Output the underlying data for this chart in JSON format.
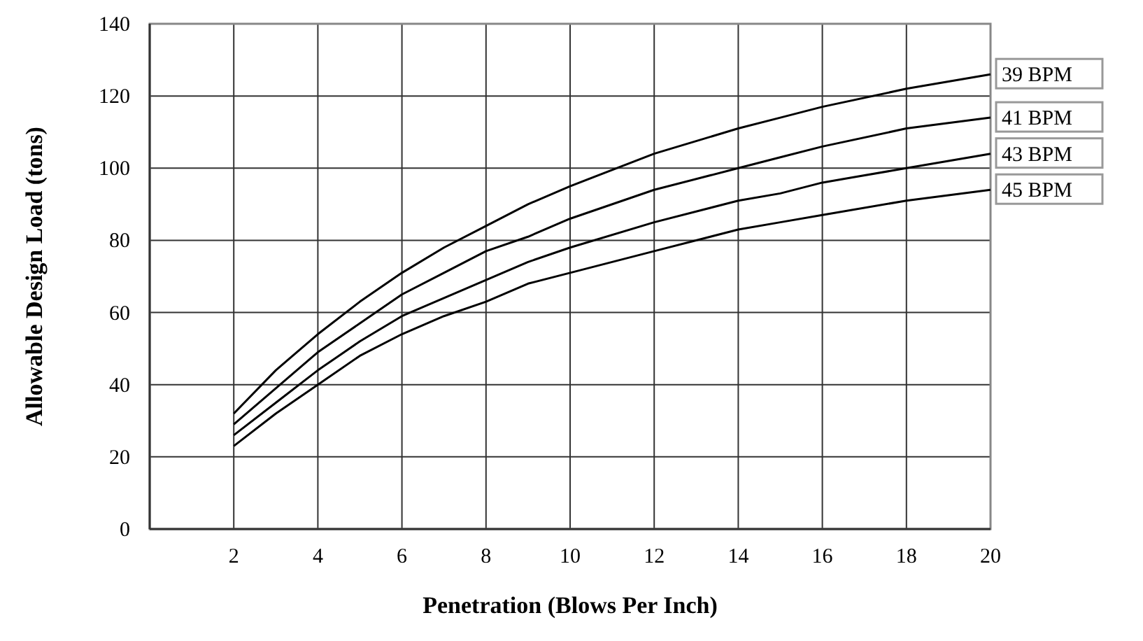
{
  "chart_data": {
    "type": "line",
    "xlabel": "Penetration (Blows Per Inch)",
    "ylabel": "Allowable Design Load (tons)",
    "x": [
      2,
      3,
      4,
      5,
      6,
      7,
      8,
      9,
      10,
      12,
      14,
      15,
      16,
      18,
      20
    ],
    "series": [
      {
        "name": "39 BPM",
        "color": "#000000",
        "values": [
          32,
          44,
          54,
          63,
          71,
          78,
          84,
          90,
          95,
          104,
          111,
          114,
          117,
          122,
          126
        ]
      },
      {
        "name": "41 BPM",
        "color": "#000000",
        "values": [
          29,
          39,
          49,
          57,
          65,
          71,
          77,
          81,
          86,
          94,
          100,
          103,
          106,
          111,
          114
        ]
      },
      {
        "name": "43 BPM",
        "color": "#000000",
        "values": [
          26,
          35,
          44,
          52,
          59,
          64,
          69,
          74,
          78,
          85,
          91,
          93,
          96,
          100,
          104
        ]
      },
      {
        "name": "45 BPM",
        "color": "#000000",
        "values": [
          23,
          32,
          40,
          48,
          54,
          59,
          63,
          68,
          71,
          77,
          83,
          85,
          87,
          91,
          94
        ]
      }
    ],
    "xlim": [
      0,
      20
    ],
    "xticks": [
      2,
      4,
      6,
      8,
      10,
      12,
      14,
      16,
      18,
      20
    ],
    "ylim": [
      0,
      140
    ],
    "yticks": [
      0,
      20,
      40,
      60,
      80,
      100,
      120,
      140
    ],
    "grid": true,
    "marker": "none",
    "line_style": "solid"
  }
}
